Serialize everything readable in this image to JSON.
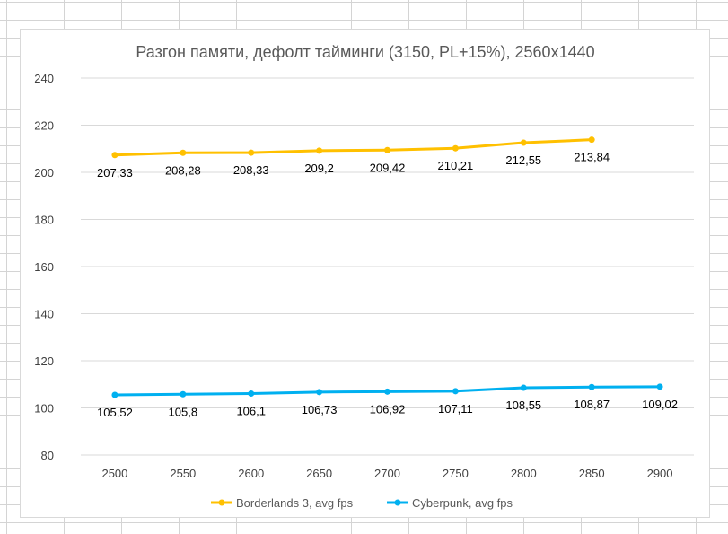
{
  "chart_data": {
    "type": "line",
    "title": "Разгон памяти, дефолт тайминги (3150, PL+15%), 2560x1440",
    "xlabel": "",
    "ylabel": "",
    "categories": [
      "2500",
      "2550",
      "2600",
      "2650",
      "2700",
      "2750",
      "2800",
      "2850",
      "2900"
    ],
    "y_ticks": [
      "80",
      "100",
      "120",
      "140",
      "160",
      "180",
      "200",
      "220",
      "240"
    ],
    "ylim": [
      80,
      240
    ],
    "grid": true,
    "legend_position": "bottom",
    "series": [
      {
        "name": "Borderlands 3, avg fps",
        "color": "#ffc000",
        "values": [
          207.33,
          208.28,
          208.33,
          209.2,
          209.42,
          210.21,
          212.55,
          213.84,
          null
        ],
        "labels": [
          "207,33",
          "208,28",
          "208,33",
          "209,2",
          "209,42",
          "210,21",
          "212,55",
          "213,84",
          ""
        ]
      },
      {
        "name": "Cyberpunk, avg fps",
        "color": "#00b0f0",
        "values": [
          105.52,
          105.8,
          106.1,
          106.73,
          106.92,
          107.11,
          108.55,
          108.87,
          109.02
        ],
        "labels": [
          "105,52",
          "105,8",
          "106,1",
          "106,73",
          "106,92",
          "107,11",
          "108,55",
          "108,87",
          "109,02"
        ]
      }
    ]
  }
}
